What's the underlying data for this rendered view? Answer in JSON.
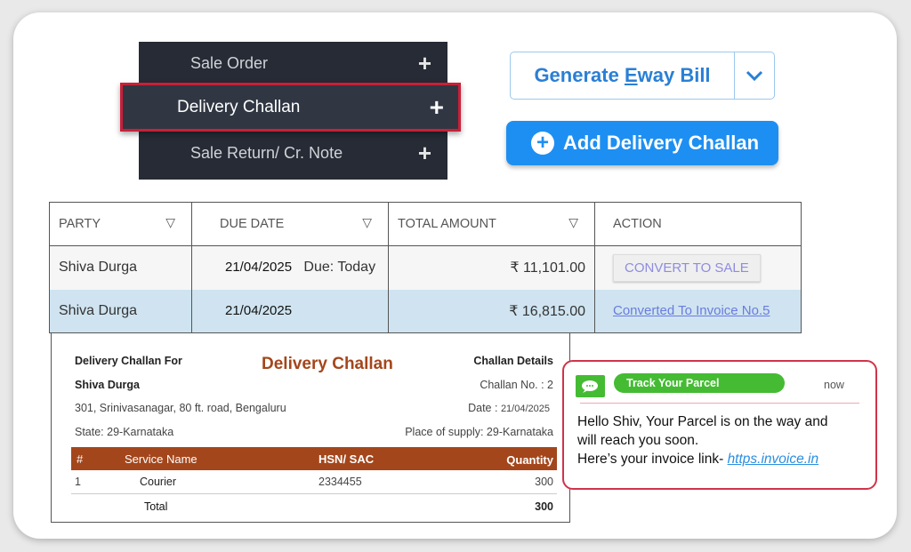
{
  "menu": {
    "items": [
      {
        "label": "Sale Order"
      },
      {
        "label": "Delivery Challan"
      },
      {
        "label": "Sale Return/ Cr. Note"
      }
    ],
    "plus": "+"
  },
  "buttons": {
    "eway_pre": "Generate ",
    "eway_u": "E",
    "eway_post": "way Bill",
    "add": "Add Delivery Challan",
    "add_icon": "+"
  },
  "table": {
    "headers": [
      "PARTY",
      "DUE DATE",
      "TOTAL AMOUNT",
      "ACTION"
    ],
    "rows": [
      {
        "party": "Shiva Durga",
        "date": "21/04/2025",
        "due": "Due: Today",
        "amount": "₹ 11,101.00",
        "action": "CONVERT TO SALE"
      },
      {
        "party": "Shiva Durga",
        "date": "21/04/2025",
        "due": "",
        "amount": "₹ 16,815.00",
        "action": "Converted To Invoice No.5"
      }
    ]
  },
  "challan": {
    "for_label": "Delivery Challan For",
    "party": "Shiva Durga",
    "address": "301, Srinivasanagar, 80 ft. road, Bengaluru",
    "state": "State: 29-Karnataka",
    "title": "Delivery Challan",
    "details_label": "Challan Details",
    "challan_no": "Challan No. : 2",
    "date_label": "Date :",
    "date": "21/04/2025",
    "place": "Place of supply: 29-Karnataka",
    "columns": [
      "#",
      "Service Name",
      "HSN/ SAC",
      "Quantity"
    ],
    "item": {
      "no": "1",
      "name": "Courier",
      "hsn": "2334455",
      "qty": "300"
    },
    "total_label": "Total",
    "total": "300"
  },
  "notification": {
    "badge": "Track Your Parcel",
    "time": "now",
    "line1": "Hello Shiv, Your Parcel is on the way and",
    "line2": "will reach you soon.",
    "line3": "Here’s your invoice link- ",
    "link": "https.invoice.in"
  },
  "colors": {
    "accent": "#1e8ff2",
    "highlight_border": "#c8203a",
    "challan_brown": "#a4461b",
    "notif_green": "#44bb33"
  }
}
